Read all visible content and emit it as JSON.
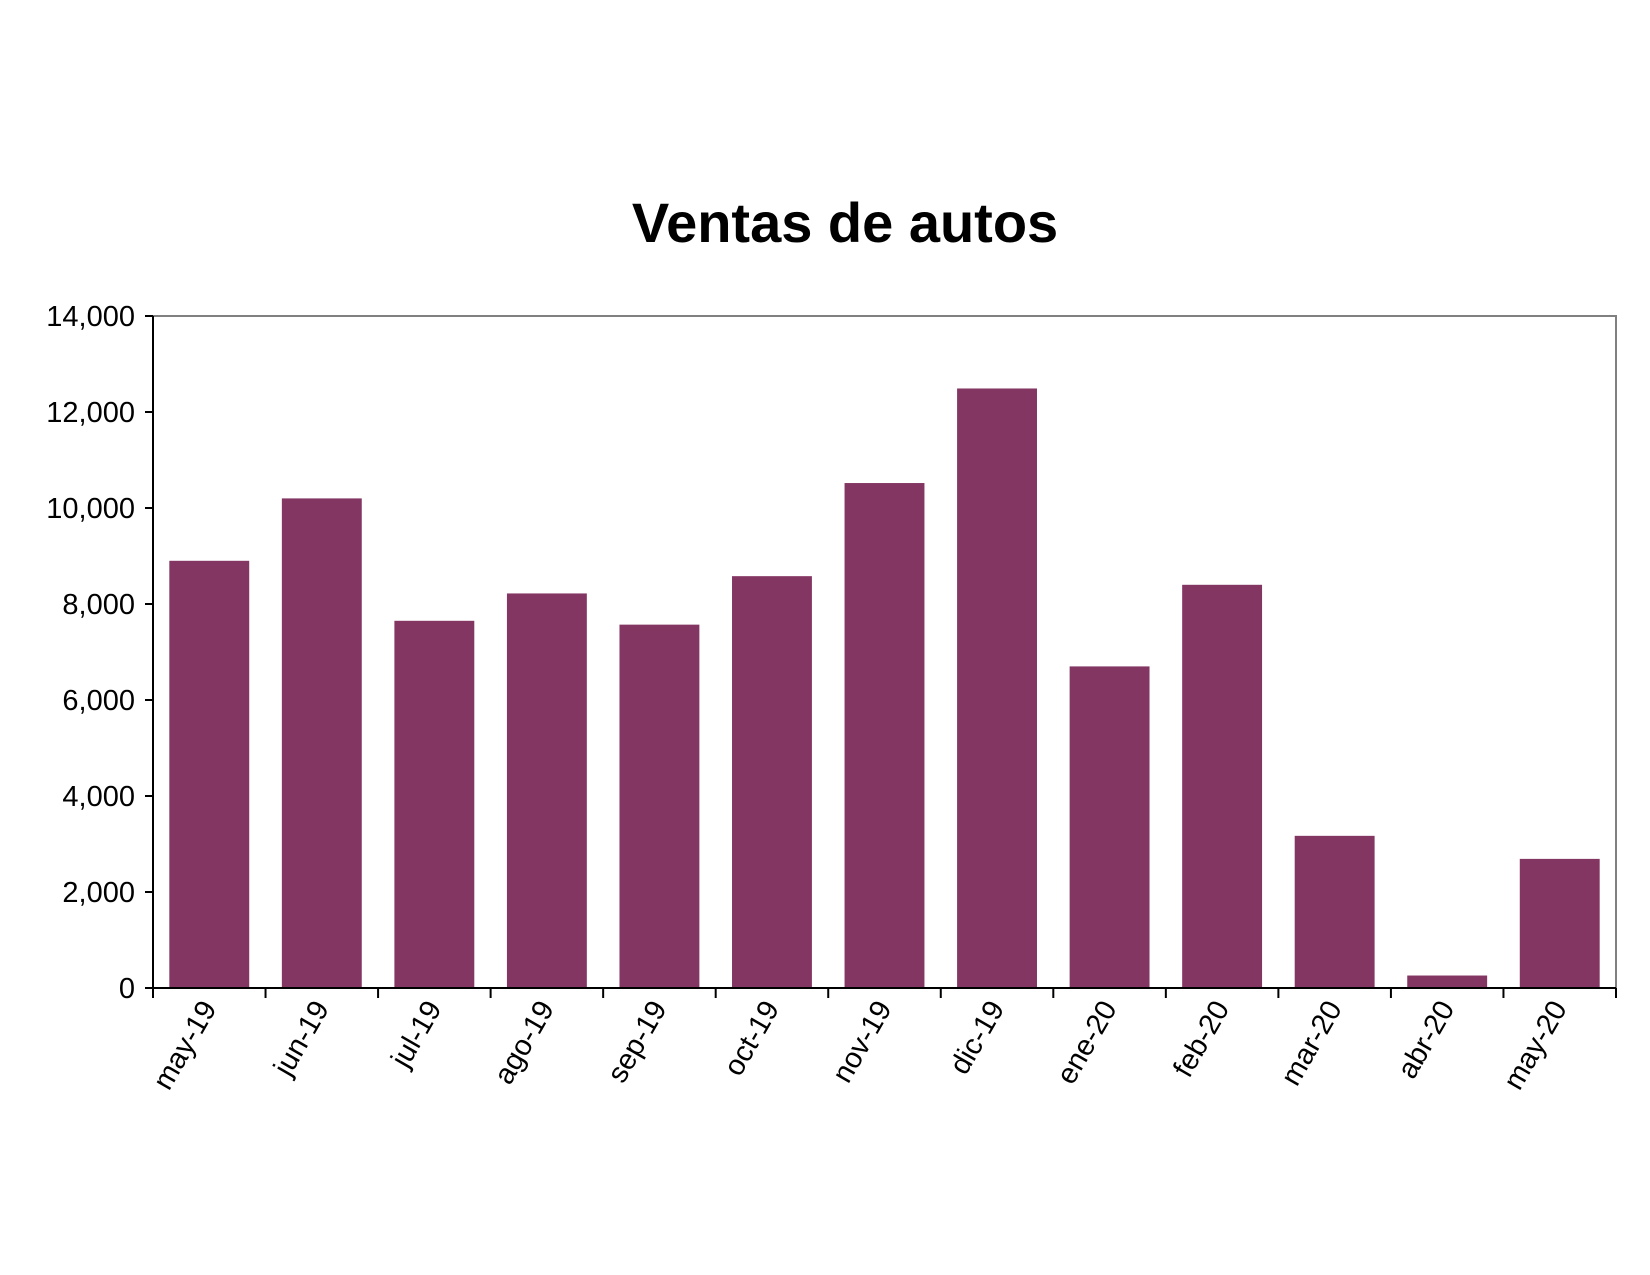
{
  "chart_data": {
    "type": "bar",
    "title": "Ventas de autos",
    "xlabel": "",
    "ylabel": "",
    "categories": [
      "may-19",
      "jun-19",
      "jul-19",
      "ago-19",
      "sep-19",
      "oct-19",
      "nov-19",
      "dic-19",
      "ene-20",
      "feb-20",
      "mar-20",
      "abr-20",
      "may-20"
    ],
    "values": [
      8900,
      10200,
      7650,
      8220,
      7570,
      8580,
      10520,
      12490,
      6700,
      8400,
      3170,
      260,
      2690
    ],
    "ylim": [
      0,
      14000
    ],
    "yticks": [
      "0",
      "2,000",
      "4,000",
      "6,000",
      "8,000",
      "10,000",
      "12,000",
      "14,000"
    ],
    "ytick_values": [
      0,
      2000,
      4000,
      6000,
      8000,
      10000,
      12000,
      14000
    ],
    "grid": false,
    "legend": "none",
    "bar_color": "#843663",
    "frame_color": "#808080"
  }
}
